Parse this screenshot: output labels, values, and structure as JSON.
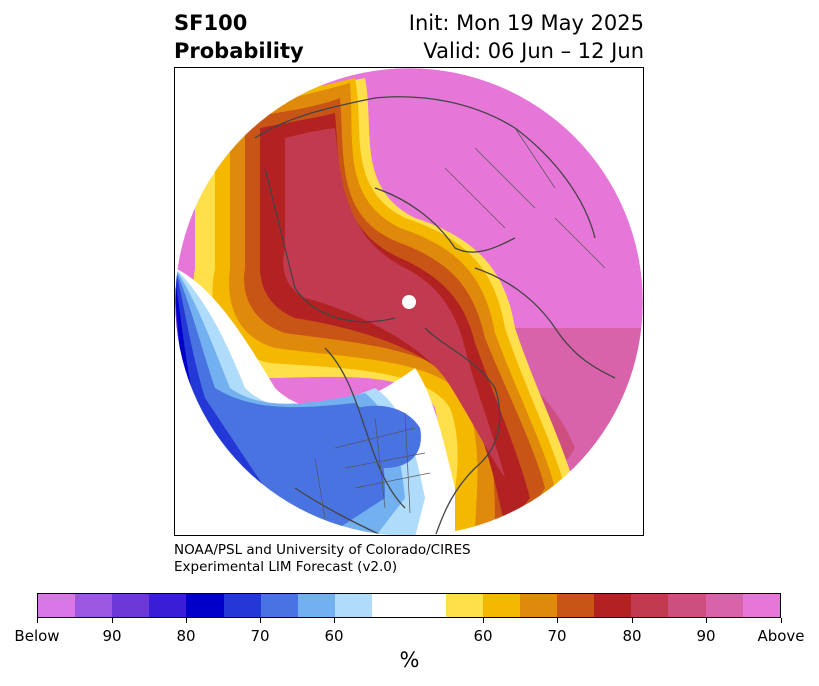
{
  "title": {
    "variable": "SF100",
    "kind": "Probability",
    "init": "Init: Mon 19 May 2025",
    "valid": "Valid: 06 Jun – 12 Jun"
  },
  "credit": {
    "line1": "NOAA/PSL and University of Colorado/CIRES",
    "line2": "Experimental LIM Forecast (v2.0)"
  },
  "map": {
    "projection": "north polar stereographic (circular)",
    "pattern": "above-normal probabilities (pink/red/orange/yellow) over Eurasia, Arctic, Atlantic and eastern Canada; below-normal probabilities (blue/purple) over the North Pacific, Alaska and western/central North America; near-neutral white band between"
  },
  "colorbar": {
    "unit_label": "%",
    "colors": [
      "#d977e8",
      "#9b57e0",
      "#6d38d8",
      "#3a1dd6",
      "#0000c8",
      "#2338d6",
      "#4a73e2",
      "#72b0f0",
      "#aedcfa",
      "#ffffff",
      "#ffe04a",
      "#f5b800",
      "#e08a0c",
      "#c85416",
      "#b22222",
      "#c23a50",
      "#cc4f80",
      "#d963aa",
      "#e676d8"
    ],
    "tick_labels": [
      "Below",
      "90",
      "80",
      "70",
      "60",
      "60",
      "70",
      "80",
      "90",
      "Above"
    ]
  }
}
